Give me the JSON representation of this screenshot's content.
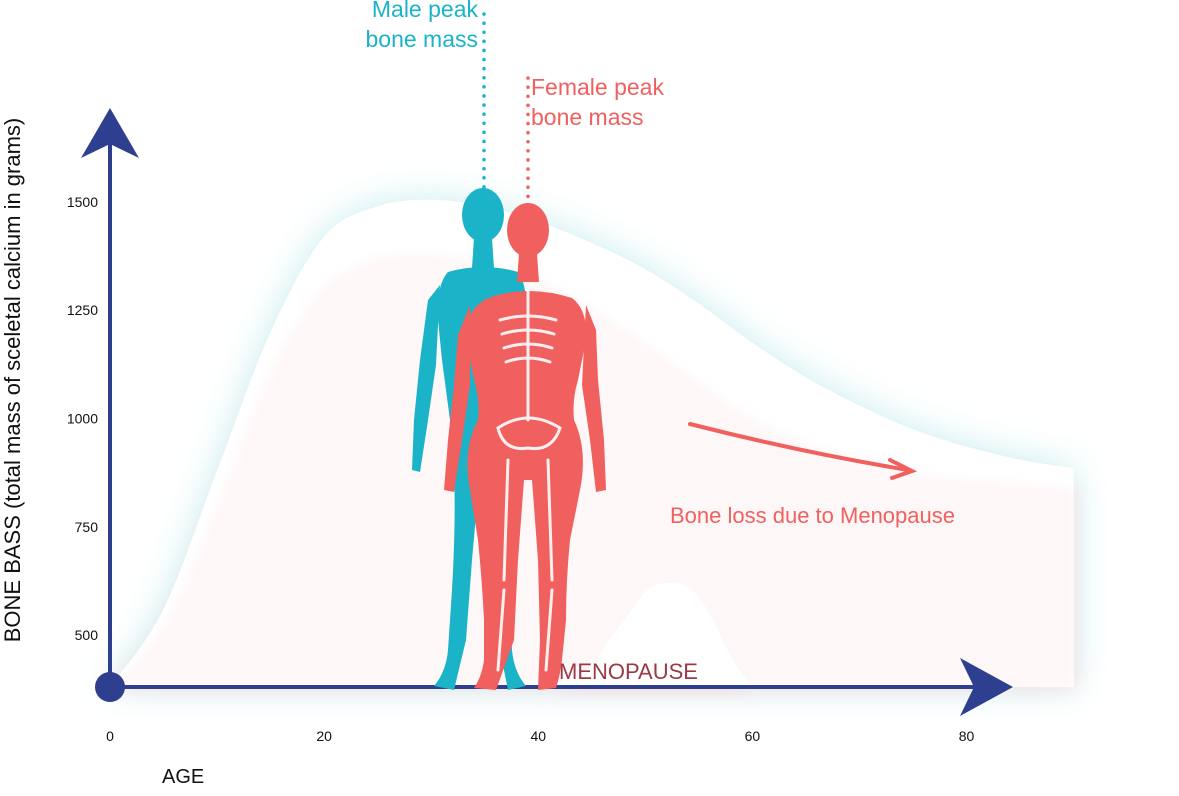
{
  "chart_data": {
    "type": "area",
    "xlabel": "AGE",
    "ylabel": "BONE BASS (total mass of sceletal calcium in grams)",
    "xticks": [
      0,
      20,
      40,
      60,
      80
    ],
    "yticks": [
      500,
      750,
      1000,
      1250,
      1500
    ],
    "xlim": [
      0,
      92
    ],
    "ylim": [
      380,
      1620
    ],
    "series": [
      {
        "x": [
          0,
          5,
          10,
          15,
          20,
          25,
          30,
          35,
          40,
          45,
          50,
          55,
          60,
          65,
          70,
          75,
          80,
          85,
          90
        ],
        "values": [
          380,
          560,
          880,
          1200,
          1420,
          1490,
          1505,
          1490,
          1455,
          1405,
          1345,
          1265,
          1175,
          1095,
          1030,
          975,
          935,
          905,
          885
        ]
      },
      {
        "x": [
          0,
          5,
          10,
          15,
          20,
          25,
          30,
          35,
          40,
          45,
          50,
          55,
          60,
          65,
          70,
          75,
          80,
          85,
          90
        ],
        "values": [
          380,
          520,
          800,
          1110,
          1300,
          1370,
          1380,
          1360,
          1320,
          1255,
          1175,
          1085,
          1000,
          945,
          905,
          875,
          860,
          850,
          840
        ]
      },
      {
        "x": [
          40,
          44,
          47,
          50,
          52,
          54,
          56,
          58,
          60
        ],
        "values": [
          380,
          410,
          500,
          600,
          620,
          610,
          550,
          450,
          380
        ]
      }
    ],
    "annotations": {
      "male_peak": [
        "Male peak",
        "bone mass"
      ],
      "female_peak": [
        "Female peak",
        "bone mass"
      ],
      "bone_loss": "Bone loss due to Menopause",
      "menopause": "MENOPAUSE"
    },
    "colors": {
      "axis": "#2f3f8f",
      "male": "#1bb3c8",
      "female": "#f0605f",
      "menopause_text": "#9a3a44",
      "male_glow": "#b6e6ea",
      "female_glow": "#f7d6da"
    }
  }
}
